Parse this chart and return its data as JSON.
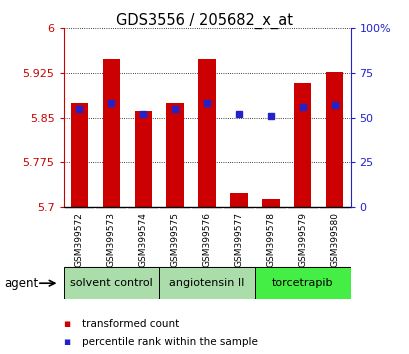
{
  "title": "GDS3556 / 205682_x_at",
  "samples": [
    "GSM399572",
    "GSM399573",
    "GSM399574",
    "GSM399575",
    "GSM399576",
    "GSM399577",
    "GSM399578",
    "GSM399579",
    "GSM399580"
  ],
  "transformed_count": [
    5.875,
    5.948,
    5.862,
    5.875,
    5.948,
    5.724,
    5.714,
    5.908,
    5.927
  ],
  "percentile_rank": [
    55,
    58,
    52,
    55,
    58,
    52,
    51,
    56,
    57
  ],
  "ymin": 5.7,
  "ymax": 6.0,
  "yticks": [
    5.7,
    5.775,
    5.85,
    5.925,
    6.0
  ],
  "ytick_labels": [
    "5.7",
    "5.775",
    "5.85",
    "5.925",
    "6"
  ],
  "right_yticks": [
    0,
    25,
    50,
    75,
    100
  ],
  "right_ytick_labels": [
    "0",
    "25",
    "50",
    "75",
    "100%"
  ],
  "bar_color": "#cc0000",
  "dot_color": "#2222cc",
  "groups": [
    {
      "label": "solvent control",
      "start": 0,
      "end": 3,
      "color": "#aaddaa"
    },
    {
      "label": "angiotensin II",
      "start": 3,
      "end": 6,
      "color": "#aaddaa"
    },
    {
      "label": "torcetrapib",
      "start": 6,
      "end": 9,
      "color": "#44ee44"
    }
  ],
  "legend_items": [
    {
      "label": "transformed count",
      "color": "#cc0000"
    },
    {
      "label": "percentile rank within the sample",
      "color": "#2222cc"
    }
  ],
  "agent_label": "agent",
  "bar_width": 0.55,
  "background_color": "#ffffff",
  "plot_bg": "#ffffff",
  "tick_label_color_left": "#cc0000",
  "tick_label_color_right": "#2222cc",
  "sample_box_color": "#cccccc",
  "group_border_color": "#000000"
}
